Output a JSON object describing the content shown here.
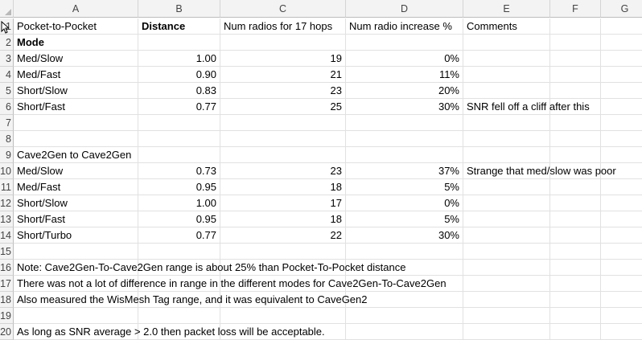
{
  "columns": [
    "A",
    "B",
    "C",
    "D",
    "E",
    "F",
    "G"
  ],
  "rows": [
    {
      "n": "1",
      "cells": [
        "Pocket-to-Pocket",
        "Distance",
        "Num radios for 17 hops",
        "Num radio increase %",
        "Comments",
        "",
        ""
      ]
    },
    {
      "n": "2",
      "cells": [
        "Mode",
        "",
        "",
        "",
        "",
        "",
        ""
      ]
    },
    {
      "n": "3",
      "cells": [
        "Med/Slow",
        "1.00",
        "19",
        "0%",
        "",
        "",
        ""
      ]
    },
    {
      "n": "4",
      "cells": [
        "Med/Fast",
        "0.90",
        "21",
        "11%",
        "",
        "",
        ""
      ]
    },
    {
      "n": "5",
      "cells": [
        "Short/Slow",
        "0.83",
        "23",
        "20%",
        "",
        "",
        ""
      ]
    },
    {
      "n": "6",
      "cells": [
        "Short/Fast",
        "0.77",
        "25",
        "30%",
        "SNR fell off a cliff after this",
        "",
        ""
      ]
    },
    {
      "n": "7",
      "cells": [
        "",
        "",
        "",
        "",
        "",
        "",
        ""
      ]
    },
    {
      "n": "8",
      "cells": [
        "",
        "",
        "",
        "",
        "",
        "",
        ""
      ]
    },
    {
      "n": "9",
      "cells": [
        "Cave2Gen to Cave2Gen",
        "",
        "",
        "",
        "",
        "",
        ""
      ]
    },
    {
      "n": "10",
      "cells": [
        "Med/Slow",
        "0.73",
        "23",
        "37%",
        "Strange that med/slow was poor",
        "",
        ""
      ]
    },
    {
      "n": "11",
      "cells": [
        "Med/Fast",
        "0.95",
        "18",
        "5%",
        "",
        "",
        ""
      ]
    },
    {
      "n": "12",
      "cells": [
        "Short/Slow",
        "1.00",
        "17",
        "0%",
        "",
        "",
        ""
      ]
    },
    {
      "n": "13",
      "cells": [
        "Short/Fast",
        "0.95",
        "18",
        "5%",
        "",
        "",
        ""
      ]
    },
    {
      "n": "14",
      "cells": [
        "Short/Turbo",
        "0.77",
        "22",
        "30%",
        "",
        "",
        ""
      ]
    },
    {
      "n": "15",
      "cells": [
        "",
        "",
        "",
        "",
        "",
        "",
        ""
      ]
    },
    {
      "n": "16",
      "cells": [
        "Note: Cave2Gen-To-Cave2Gen range is about 25% than Pocket-To-Pocket distance",
        "",
        "",
        "",
        "",
        "",
        ""
      ]
    },
    {
      "n": "17",
      "cells": [
        "There was not a lot of difference in range in the different modes for Cave2Gen-To-Cave2Gen",
        "",
        "",
        "",
        "",
        "",
        ""
      ]
    },
    {
      "n": "18",
      "cells": [
        "Also measured the WisMesh Tag range, and it was equivalent to CaveGen2",
        "",
        "",
        "",
        "",
        "",
        ""
      ]
    },
    {
      "n": "19",
      "cells": [
        "",
        "",
        "",
        "",
        "",
        "",
        ""
      ]
    },
    {
      "n": "20",
      "cells": [
        "As long as SNR average > 2.0 then packet loss will be acceptable.",
        "",
        "",
        "",
        "",
        "",
        ""
      ]
    }
  ]
}
